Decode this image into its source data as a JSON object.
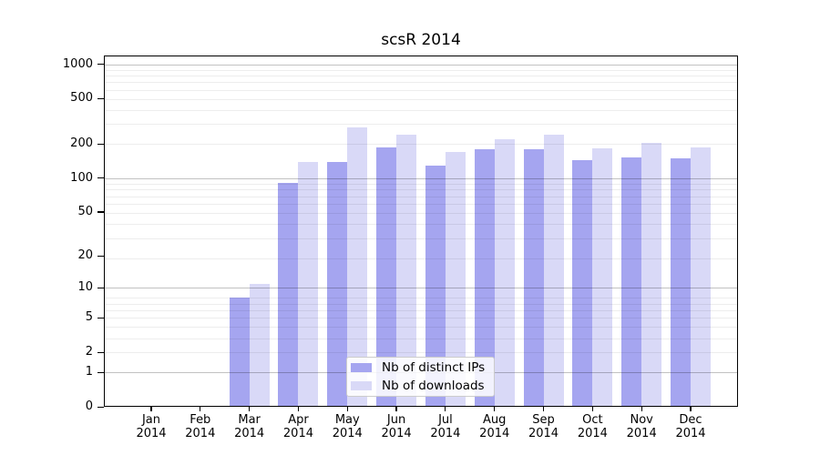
{
  "chart": {
    "title": "scsR 2014",
    "year": "2014",
    "months": [
      "Jan",
      "Feb",
      "Mar",
      "Apr",
      "May",
      "Jun",
      "Jul",
      "Aug",
      "Sep",
      "Oct",
      "Nov",
      "Dec"
    ],
    "y_tick_labels": [
      "0",
      "1",
      "2",
      "5",
      "10",
      "20",
      "50",
      "100",
      "200",
      "500",
      "1000"
    ]
  },
  "legend": {
    "items": [
      {
        "label": "Nb of distinct IPs",
        "color": "#a5a5f0"
      },
      {
        "label": "Nb of downloads",
        "color": "#d9d9f7"
      }
    ]
  },
  "chart_data": {
    "type": "bar",
    "title": "scsR 2014",
    "categories": [
      "Jan 2014",
      "Feb 2014",
      "Mar 2014",
      "Apr 2014",
      "May 2014",
      "Jun 2014",
      "Jul 2014",
      "Aug 2014",
      "Sep 2014",
      "Oct 2014",
      "Nov 2014",
      "Dec 2014"
    ],
    "series": [
      {
        "name": "Nb of distinct IPs",
        "color": "#a5a5f0",
        "values": [
          0,
          0,
          8,
          90,
          140,
          188,
          128,
          180,
          180,
          145,
          153,
          150
        ]
      },
      {
        "name": "Nb of downloads",
        "color": "#d9d9f7",
        "values": [
          0,
          0,
          11,
          140,
          280,
          243,
          170,
          220,
          240,
          183,
          205,
          186
        ]
      }
    ],
    "xlabel": "",
    "ylabel": "",
    "yscale": "log10(value+1)",
    "yticks": [
      0,
      1,
      2,
      5,
      10,
      20,
      50,
      100,
      200,
      500,
      1000
    ],
    "major_gridlines": [
      1,
      10,
      100,
      1000
    ],
    "grid": true,
    "ylim": [
      0,
      1250
    ],
    "legend_position": "lower center"
  },
  "colors": {
    "grid_minor": "rgba(0,0,0,0.07)",
    "grid_major": "rgba(0,0,0,0.24)",
    "frame": "#000000"
  }
}
